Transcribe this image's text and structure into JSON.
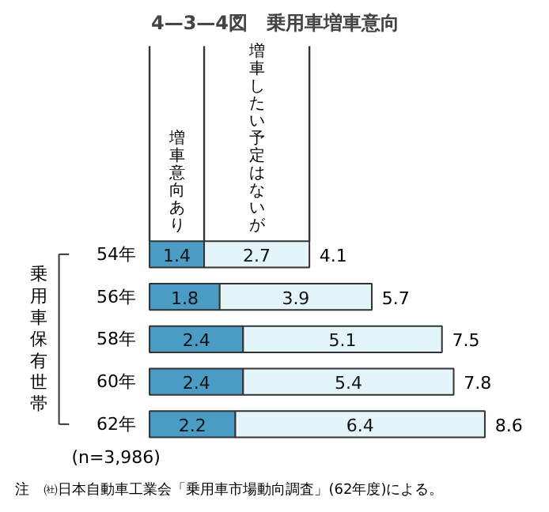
{
  "chart_data": {
    "type": "bar",
    "orientation": "horizontal",
    "stacked": true,
    "title": "4—3—4図　乗用車増車意向",
    "ylabel": "乗用車保有世帯",
    "categories": [
      "54年",
      "56年",
      "58年",
      "60年",
      "62年"
    ],
    "series": [
      {
        "name": "増車意向あり",
        "color": "#4a9cc4",
        "values": [
          1.4,
          1.8,
          2.4,
          2.4,
          2.2
        ]
      },
      {
        "name": "増車したい予定はないが",
        "color": "#e4f5fa",
        "values": [
          2.7,
          3.9,
          5.1,
          5.4,
          6.4
        ]
      }
    ],
    "data_labels": true,
    "totals": [
      "4.1",
      "5.7",
      "7.5",
      "7.8",
      "8.6"
    ],
    "tick_labels": "y",
    "legend": false,
    "annotations": [
      "(n=3,986)",
      "注　㈳日本自動車工業会「乗用車市場動向調査」(62年度)による。"
    ]
  }
}
